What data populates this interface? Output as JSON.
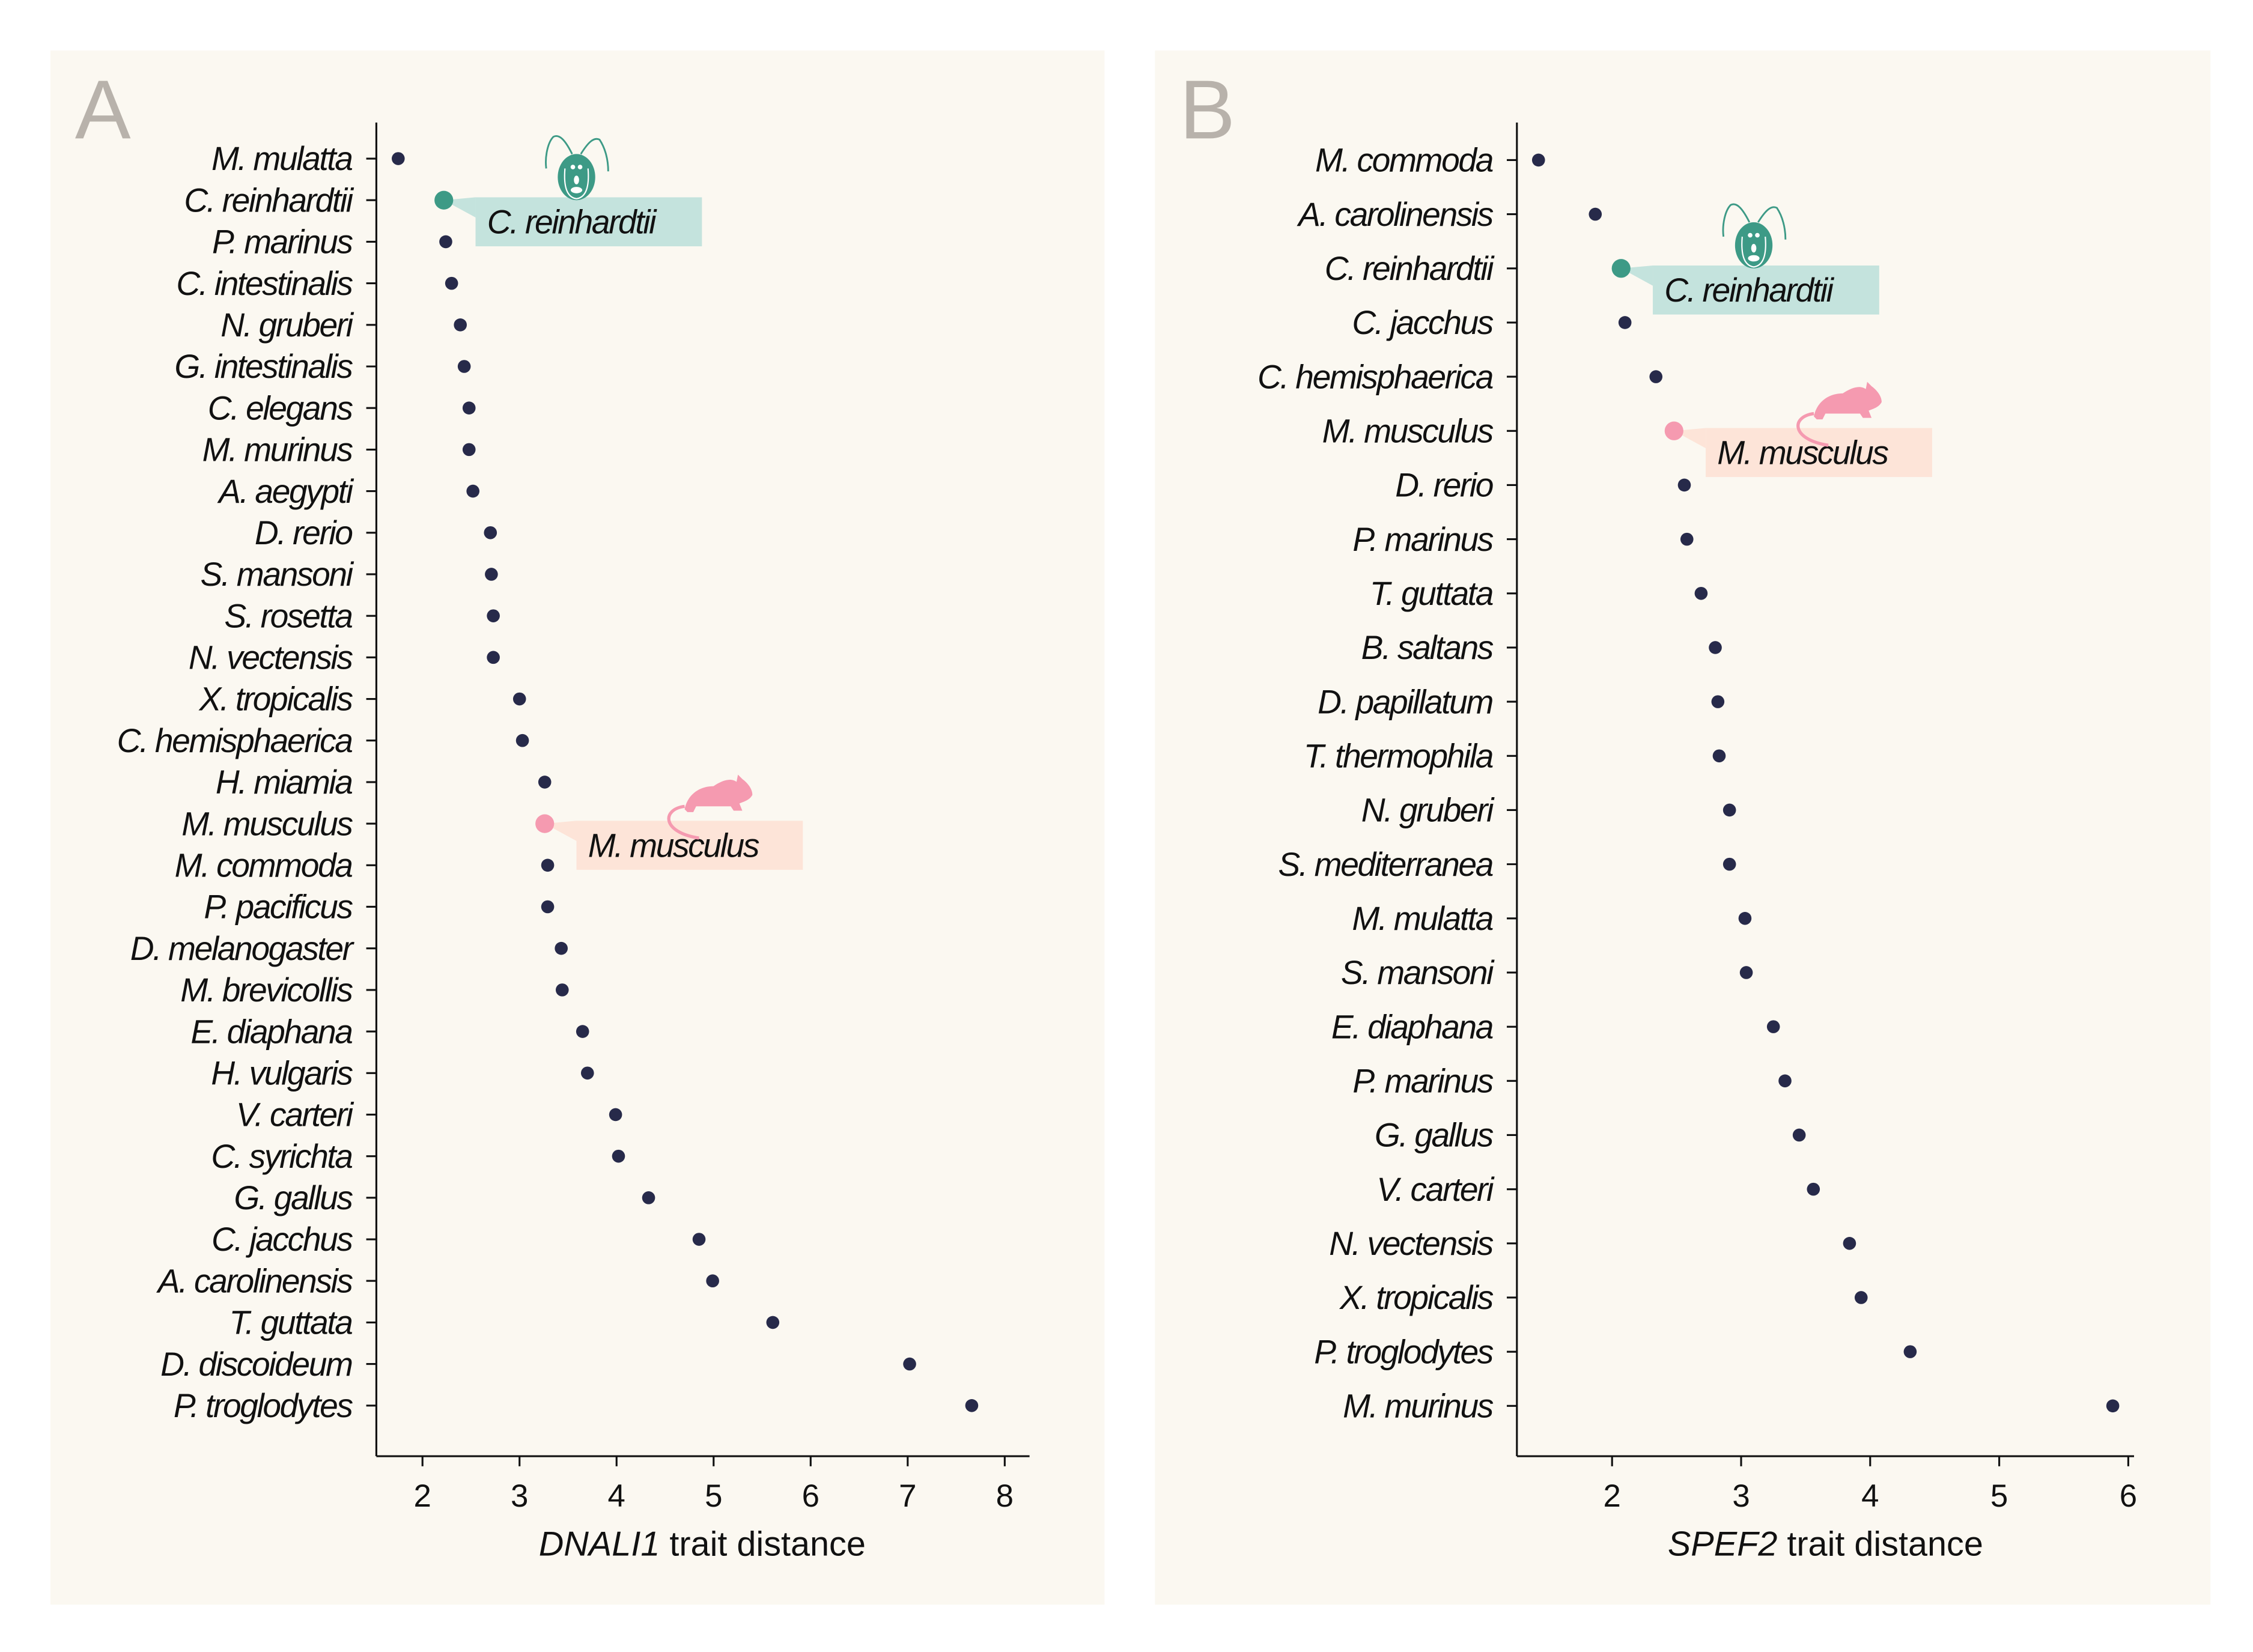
{
  "colors": {
    "panel_bg": "#fbf8f1",
    "dot": "#272a4a",
    "axis": "#111111",
    "panel_letter": "#b8b2ab",
    "teal": "#3d9a86",
    "teal_box": "#c4e3dd",
    "pink": "#f59ab0",
    "pink_box": "#fde4d8"
  },
  "chart_data": [
    {
      "type": "scatter",
      "panel_label": "A",
      "xlabel_italic": "DNALI1",
      "xlabel_rest": " trait distance",
      "xlim": [
        1.52,
        8.25
      ],
      "xticks": [
        2,
        3,
        4,
        5,
        6,
        7,
        8
      ],
      "grid": false,
      "categories": [
        "M. mulatta",
        "C. reinhardtii",
        "P. marinus",
        "C. intestinalis",
        "N. gruberi",
        "G. intestinalis",
        "C. elegans",
        "M. murinus",
        "A. aegypti",
        "D. rerio",
        "S. mansoni",
        "S. rosetta",
        "N. vectensis",
        "X. tropicalis",
        "C. hemisphaerica",
        "H. miamia",
        "M. musculus",
        "M. commoda",
        "P. pacificus",
        "D. melanogaster",
        "M. brevicollis",
        "E. diaphana",
        "H. vulgaris",
        "V. carteri",
        "C. syrichta",
        "G. gallus",
        "C. jacchus",
        "A. carolinensis",
        "T. guttata",
        "D. discoideum",
        "P. troglodytes"
      ],
      "values": [
        1.75,
        2.22,
        2.24,
        2.3,
        2.39,
        2.43,
        2.48,
        2.48,
        2.52,
        2.7,
        2.71,
        2.73,
        2.73,
        3.0,
        3.03,
        3.26,
        3.26,
        3.29,
        3.29,
        3.43,
        3.44,
        3.65,
        3.7,
        3.99,
        4.02,
        4.33,
        4.85,
        4.99,
        5.61,
        7.02,
        7.66
      ],
      "highlights": [
        {
          "category": "C. reinhardtii",
          "label": "C. reinhardtii",
          "icon": "chlamydomonas-icon",
          "color": "teal"
        },
        {
          "category": "M. musculus",
          "label": "M. musculus",
          "icon": "mouse-icon",
          "color": "pink"
        }
      ]
    },
    {
      "type": "scatter",
      "panel_label": "B",
      "xlabel_italic": "SPEF2",
      "xlabel_rest": " trait distance",
      "xlim": [
        1.26,
        6.04
      ],
      "xticks": [
        2,
        3,
        4,
        5,
        6
      ],
      "grid": false,
      "categories": [
        "M. commoda",
        "A. carolinensis",
        "C. reinhardtii",
        "C. jacchus",
        "C. hemisphaerica",
        "M. musculus",
        "D. rerio",
        "P. marinus",
        "T. guttata",
        "B. saltans",
        "D. papillatum",
        "T. thermophila",
        "N. gruberi",
        "S. mediterranea",
        "M. mulatta",
        "S. mansoni",
        "E. diaphana",
        "P. marinus",
        "G. gallus",
        "V. carteri",
        "N. vectensis",
        "X. tropicalis",
        "P. troglodytes",
        "M. murinus"
      ],
      "values": [
        1.43,
        1.87,
        2.07,
        2.1,
        2.34,
        2.48,
        2.56,
        2.58,
        2.69,
        2.8,
        2.82,
        2.83,
        2.91,
        2.91,
        3.03,
        3.04,
        3.25,
        3.34,
        3.45,
        3.56,
        3.84,
        3.93,
        4.31,
        5.88
      ],
      "highlights": [
        {
          "category": "C. reinhardtii",
          "label": "C. reinhardtii",
          "icon": "chlamydomonas-icon",
          "color": "teal"
        },
        {
          "category": "M. musculus",
          "label": "M. musculus",
          "icon": "mouse-icon",
          "color": "pink"
        }
      ]
    }
  ]
}
